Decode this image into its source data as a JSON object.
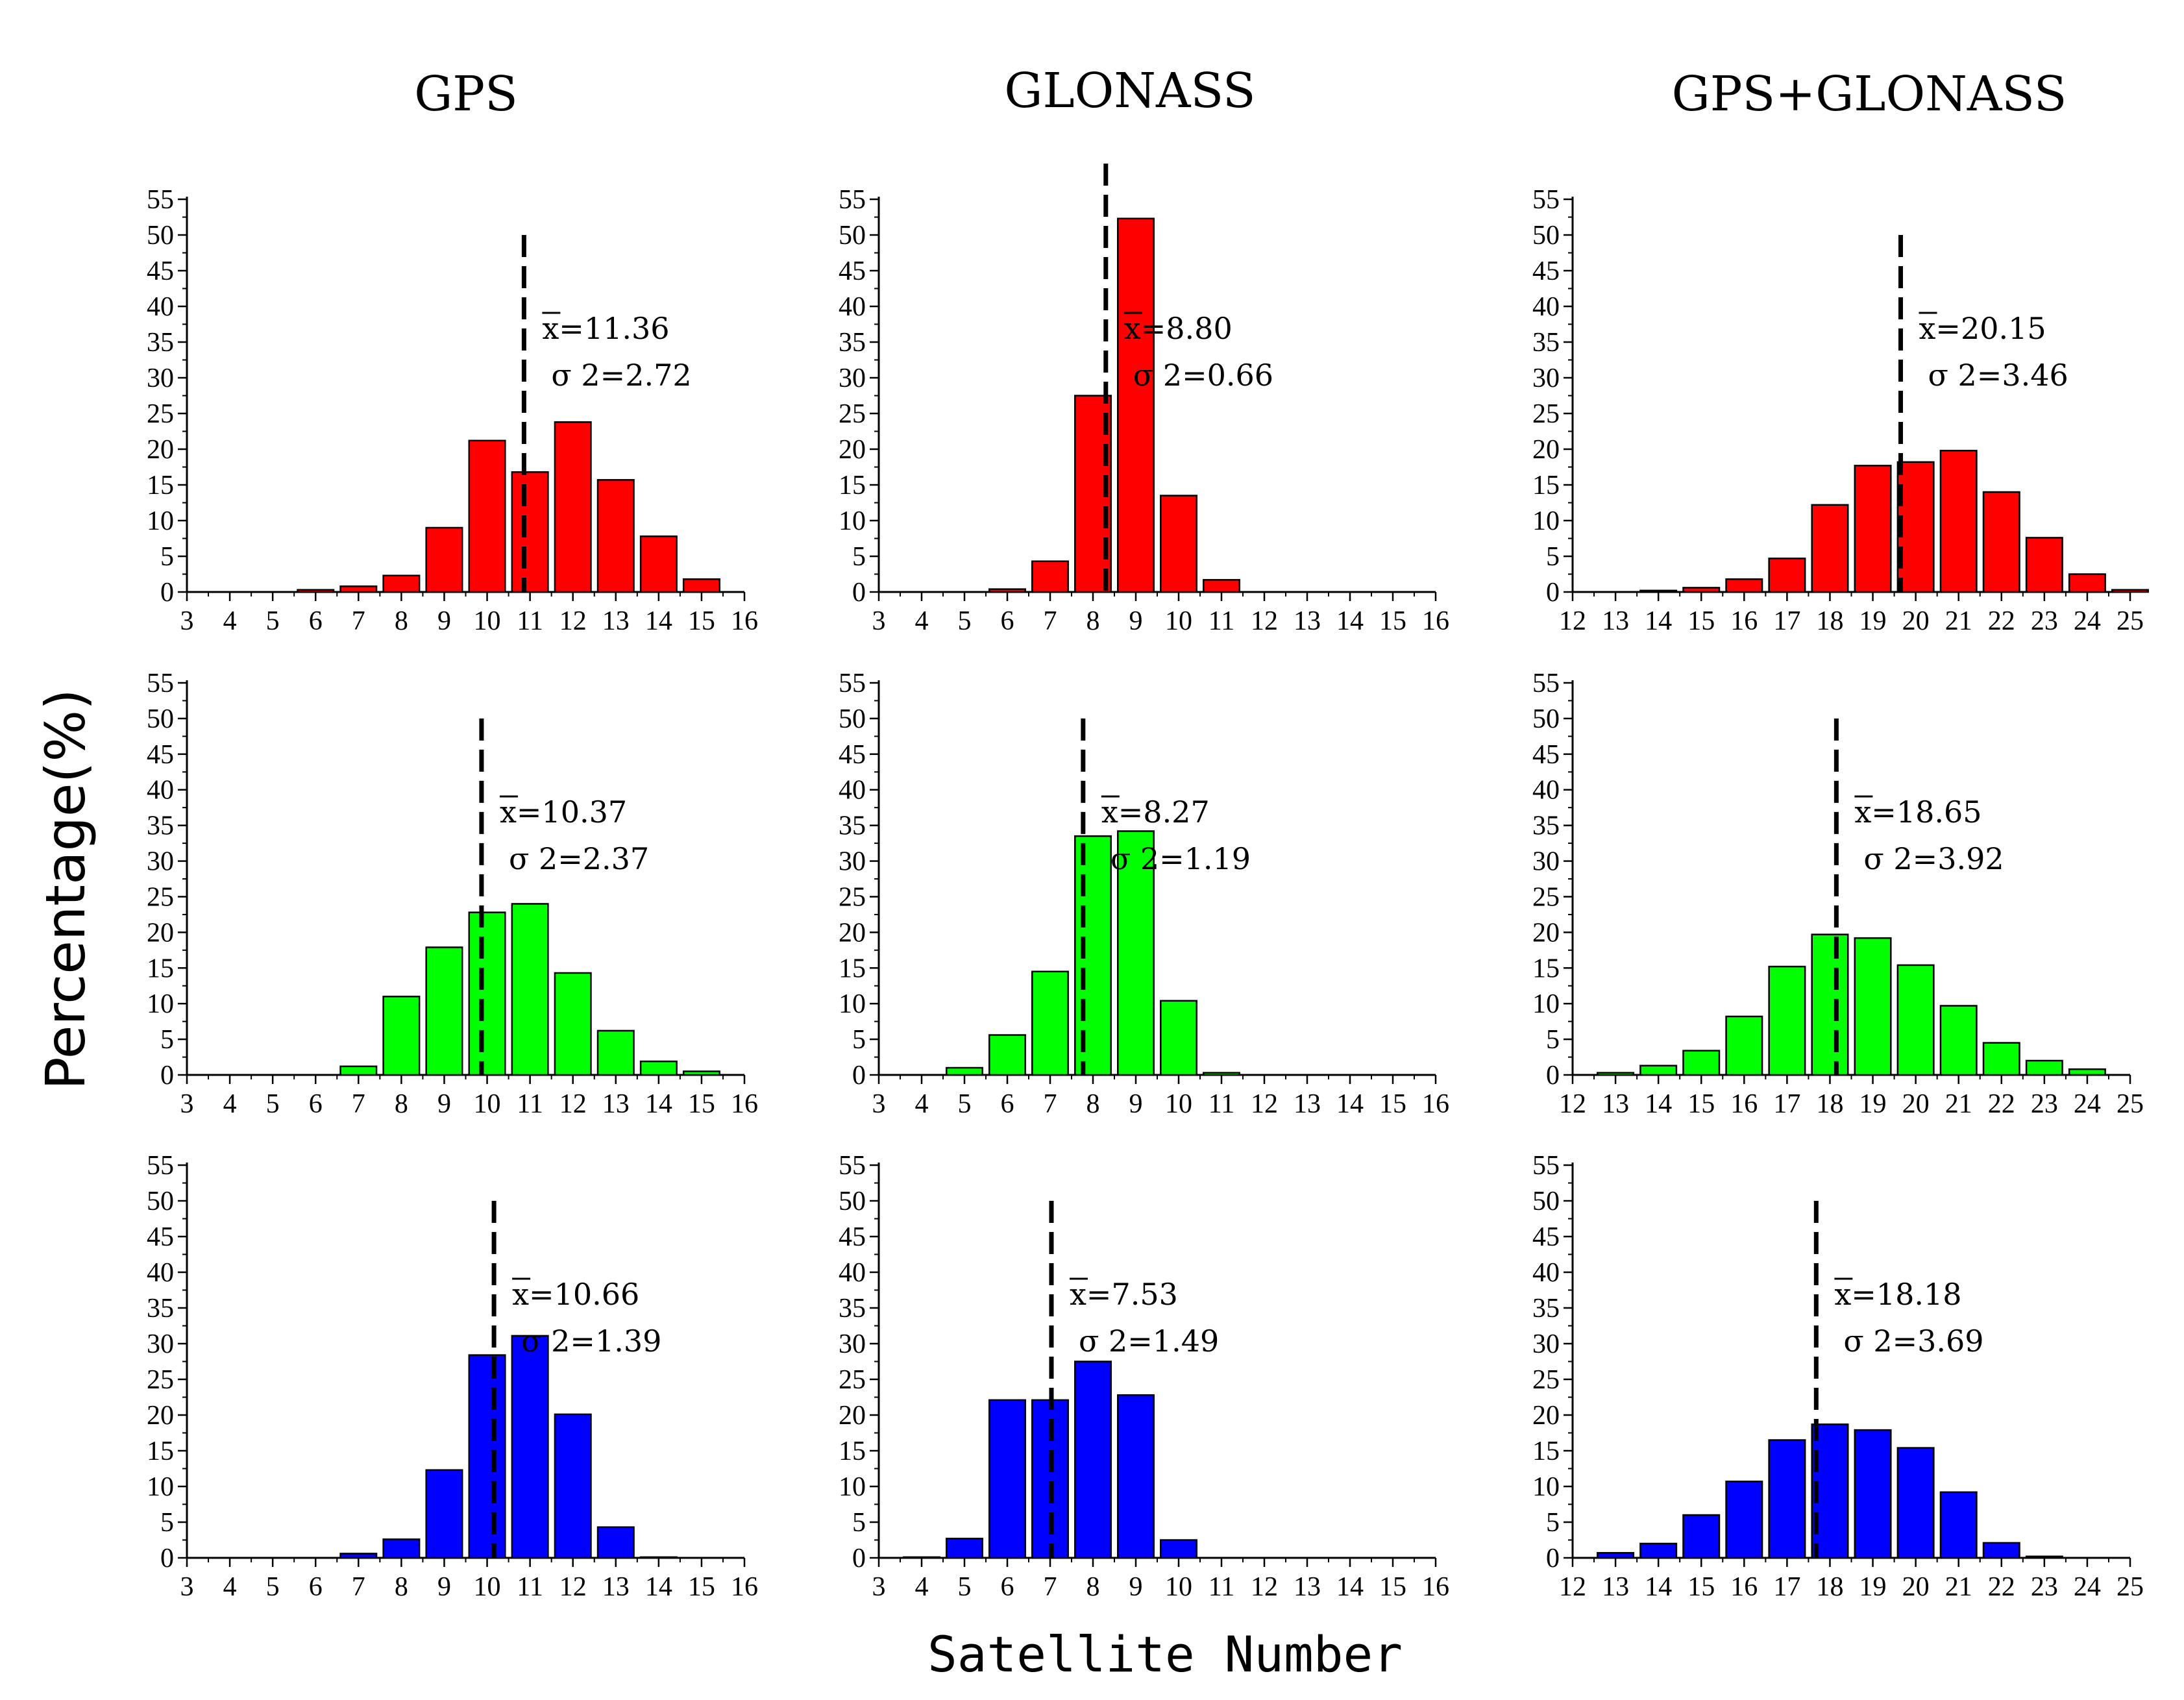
{
  "figure": {
    "column_titles": [
      "GPS",
      "GLONASS",
      "GPS+GLONASS"
    ],
    "xlabel": "Satellite Number",
    "ylabel": "Percentage(%)",
    "row_colors": [
      "#ff0000",
      "#00ff00",
      "#0000ff"
    ]
  },
  "chart_data": [
    {
      "type": "bar",
      "title": "GPS",
      "row": 0,
      "col": 0,
      "color": "#ff0000",
      "xlim": [
        3,
        16
      ],
      "ylim": [
        0,
        55
      ],
      "xticks": [
        3,
        4,
        5,
        6,
        7,
        8,
        9,
        10,
        11,
        12,
        13,
        14,
        15,
        16
      ],
      "yticks": [
        0,
        5,
        10,
        15,
        20,
        25,
        30,
        35,
        40,
        45,
        50,
        55
      ],
      "categories": [
        6,
        7,
        8,
        9,
        10,
        11,
        12,
        13,
        14,
        15
      ],
      "values": [
        0.3,
        0.8,
        2.3,
        9.0,
        21.2,
        16.8,
        23.8,
        15.7,
        7.8,
        1.8
      ],
      "mean": 11.36,
      "mean_label": "x=11.36",
      "var_label": "σ 2=2.72",
      "mean_line_top": 50
    },
    {
      "type": "bar",
      "title": "GLONASS",
      "row": 0,
      "col": 1,
      "color": "#ff0000",
      "xlim": [
        3,
        16
      ],
      "ylim": [
        0,
        55
      ],
      "xticks": [
        3,
        4,
        5,
        6,
        7,
        8,
        9,
        10,
        11,
        12,
        13,
        14,
        15,
        16
      ],
      "yticks": [
        0,
        5,
        10,
        15,
        20,
        25,
        30,
        35,
        40,
        45,
        50,
        55
      ],
      "categories": [
        6,
        7,
        8,
        9,
        10,
        11
      ],
      "values": [
        0.4,
        4.3,
        27.5,
        52.3,
        13.5,
        1.7
      ],
      "mean": 8.8,
      "mean_label": "x=8.80",
      "var_label": "σ 2=0.66",
      "mean_line_top": 60
    },
    {
      "type": "bar",
      "title": "GPS+GLONASS",
      "row": 0,
      "col": 2,
      "color": "#ff0000",
      "xlim": [
        12,
        25
      ],
      "ylim": [
        0,
        55
      ],
      "xticks": [
        12,
        13,
        14,
        15,
        16,
        17,
        18,
        19,
        20,
        21,
        22,
        23,
        24,
        25
      ],
      "yticks": [
        0,
        5,
        10,
        15,
        20,
        25,
        30,
        35,
        40,
        45,
        50,
        55
      ],
      "categories": [
        14,
        15,
        16,
        17,
        18,
        19,
        20,
        21,
        22,
        23,
        24,
        25
      ],
      "values": [
        0.2,
        0.6,
        1.8,
        4.7,
        12.2,
        17.7,
        18.2,
        19.8,
        14.0,
        7.6,
        2.5,
        0.3
      ],
      "mean": 20.15,
      "mean_label": "x=20.15",
      "var_label": "σ 2=3.46",
      "mean_line_top": 50
    },
    {
      "type": "bar",
      "title": "GPS",
      "row": 1,
      "col": 0,
      "color": "#00ff00",
      "xlim": [
        3,
        16
      ],
      "ylim": [
        0,
        55
      ],
      "xticks": [
        3,
        4,
        5,
        6,
        7,
        8,
        9,
        10,
        11,
        12,
        13,
        14,
        15,
        16
      ],
      "yticks": [
        0,
        5,
        10,
        15,
        20,
        25,
        30,
        35,
        40,
        45,
        50,
        55
      ],
      "categories": [
        7,
        8,
        9,
        10,
        11,
        12,
        13,
        14,
        15
      ],
      "values": [
        1.2,
        11.0,
        17.9,
        22.8,
        24.0,
        14.3,
        6.2,
        1.9,
        0.5
      ],
      "mean": 10.37,
      "mean_label": "x=10.37",
      "var_label": "σ 2=2.37",
      "mean_line_top": 50
    },
    {
      "type": "bar",
      "title": "GLONASS",
      "row": 1,
      "col": 1,
      "color": "#00ff00",
      "xlim": [
        3,
        16
      ],
      "ylim": [
        0,
        55
      ],
      "xticks": [
        3,
        4,
        5,
        6,
        7,
        8,
        9,
        10,
        11,
        12,
        13,
        14,
        15,
        16
      ],
      "yticks": [
        0,
        5,
        10,
        15,
        20,
        25,
        30,
        35,
        40,
        45,
        50,
        55
      ],
      "categories": [
        5,
        6,
        7,
        8,
        9,
        10,
        11
      ],
      "values": [
        1.0,
        5.6,
        14.5,
        33.5,
        34.2,
        10.4,
        0.3
      ],
      "mean": 8.27,
      "mean_label": "x=8.27",
      "var_label": "σ 2=1.19",
      "mean_line_top": 50
    },
    {
      "type": "bar",
      "title": "GPS+GLONASS",
      "row": 1,
      "col": 2,
      "color": "#00ff00",
      "xlim": [
        12,
        25
      ],
      "ylim": [
        0,
        55
      ],
      "xticks": [
        12,
        13,
        14,
        15,
        16,
        17,
        18,
        19,
        20,
        21,
        22,
        23,
        24,
        25
      ],
      "yticks": [
        0,
        5,
        10,
        15,
        20,
        25,
        30,
        35,
        40,
        45,
        50,
        55
      ],
      "categories": [
        13,
        14,
        15,
        16,
        17,
        18,
        19,
        20,
        21,
        22,
        23,
        24
      ],
      "values": [
        0.3,
        1.3,
        3.4,
        8.2,
        15.2,
        19.7,
        19.2,
        15.4,
        9.7,
        4.5,
        2.0,
        0.8
      ],
      "mean": 18.65,
      "mean_label": "x=18.65",
      "var_label": "σ 2=3.92",
      "mean_line_top": 50
    },
    {
      "type": "bar",
      "title": "GPS",
      "row": 2,
      "col": 0,
      "color": "#0000ff",
      "xlim": [
        3,
        16
      ],
      "ylim": [
        0,
        55
      ],
      "xticks": [
        3,
        4,
        5,
        6,
        7,
        8,
        9,
        10,
        11,
        12,
        13,
        14,
        15,
        16
      ],
      "yticks": [
        0,
        5,
        10,
        15,
        20,
        25,
        30,
        35,
        40,
        45,
        50,
        55
      ],
      "categories": [
        7,
        8,
        9,
        10,
        11,
        12,
        13,
        14
      ],
      "values": [
        0.6,
        2.6,
        12.3,
        28.4,
        31.1,
        20.1,
        4.3,
        0.1
      ],
      "mean": 10.66,
      "mean_label": "x=10.66",
      "var_label": "σ 2=1.39",
      "mean_line_top": 50
    },
    {
      "type": "bar",
      "title": "GLONASS",
      "row": 2,
      "col": 1,
      "color": "#0000ff",
      "xlim": [
        3,
        16
      ],
      "ylim": [
        0,
        55
      ],
      "xticks": [
        3,
        4,
        5,
        6,
        7,
        8,
        9,
        10,
        11,
        12,
        13,
        14,
        15,
        16
      ],
      "yticks": [
        0,
        5,
        10,
        15,
        20,
        25,
        30,
        35,
        40,
        45,
        50,
        55
      ],
      "categories": [
        4,
        5,
        6,
        7,
        8,
        9,
        10
      ],
      "values": [
        0.1,
        2.7,
        22.1,
        22.1,
        27.5,
        22.8,
        2.5
      ],
      "mean": 7.53,
      "mean_label": "x=7.53",
      "var_label": "σ 2=1.49",
      "mean_line_top": 50
    },
    {
      "type": "bar",
      "title": "GPS+GLONASS",
      "row": 2,
      "col": 2,
      "color": "#0000ff",
      "xlim": [
        12,
        25
      ],
      "ylim": [
        0,
        55
      ],
      "xticks": [
        12,
        13,
        14,
        15,
        16,
        17,
        18,
        19,
        20,
        21,
        22,
        23,
        24,
        25
      ],
      "yticks": [
        0,
        5,
        10,
        15,
        20,
        25,
        30,
        35,
        40,
        45,
        50,
        55
      ],
      "categories": [
        13,
        14,
        15,
        16,
        17,
        18,
        19,
        20,
        21,
        22,
        23
      ],
      "values": [
        0.7,
        2.0,
        6.0,
        10.7,
        16.5,
        18.7,
        17.9,
        15.4,
        9.2,
        2.1,
        0.2
      ],
      "mean": 18.18,
      "mean_label": "x=18.18",
      "var_label": "σ 2=3.69",
      "mean_line_top": 50
    }
  ]
}
